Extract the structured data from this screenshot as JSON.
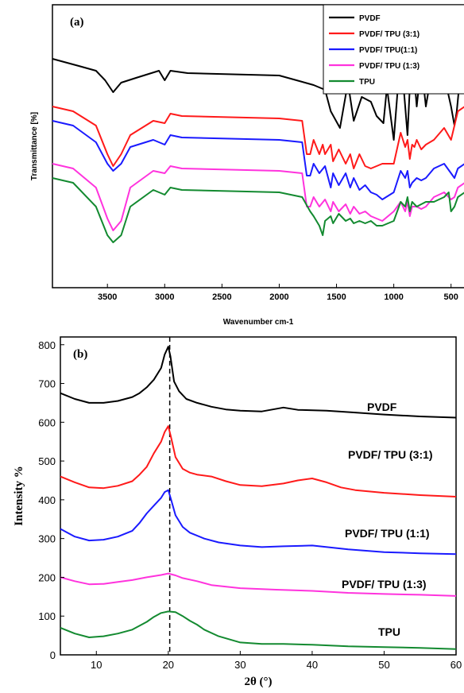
{
  "chart_data": [
    {
      "type": "line",
      "panel_label": "(a)",
      "xlabel": "Wavenumber cm-1",
      "ylabel": "Transmittance [%]",
      "xlim": [
        3980,
        380
      ],
      "x_reversed": true,
      "x_ticks": [
        "3500",
        "3000",
        "2500",
        "2000",
        "1500",
        "1000",
        "500"
      ],
      "x_tick_values": [
        3500,
        3000,
        2500,
        2000,
        1500,
        1000,
        500
      ],
      "legend_position": "top-right",
      "colors": {
        "PVDF": "#000000",
        "PVDF/ TPU (3:1)": "#ff1a1a",
        "PVDF/ TPU(1:1)": "#1a1aff",
        "PVDF/ TPU (1:3)": "#ff33dd",
        "TPU": "#138a30"
      },
      "series": [
        {
          "name": "PVDF",
          "x": [
            3980,
            3750,
            3600,
            3520,
            3450,
            3380,
            3250,
            3050,
            3000,
            2950,
            2800,
            2000,
            1700,
            1600,
            1550,
            1470,
            1400,
            1350,
            1280,
            1200,
            1150,
            1090,
            1060,
            1000,
            940,
            900,
            880,
            860,
            840,
            800,
            760,
            720,
            650,
            560,
            500,
            470,
            450,
            420,
            380
          ],
          "y": [
            92,
            89,
            87,
            83,
            78,
            82,
            84,
            87,
            83,
            87,
            86,
            85,
            81,
            79,
            70,
            63,
            82,
            66,
            76,
            74,
            68,
            65,
            80,
            58,
            95,
            72,
            60,
            80,
            95,
            72,
            90,
            72,
            92,
            85,
            72,
            64,
            70,
            85,
            88
          ]
        },
        {
          "name": "PVDF/ TPU (3:1)",
          "x": [
            3980,
            3800,
            3600,
            3500,
            3450,
            3380,
            3300,
            3100,
            3000,
            2950,
            2850,
            2000,
            1800,
            1760,
            1730,
            1700,
            1650,
            1620,
            1600,
            1550,
            1530,
            1480,
            1420,
            1380,
            1350,
            1300,
            1250,
            1200,
            1150,
            1100,
            1000,
            940,
            900,
            880,
            860,
            840,
            820,
            800,
            760,
            720,
            650,
            560,
            500,
            470,
            440,
            380
          ],
          "y": [
            72,
            70,
            64,
            52,
            47,
            52,
            60,
            66,
            65,
            69,
            68,
            67,
            66,
            52,
            52,
            58,
            52,
            56,
            52,
            56,
            49,
            54,
            48,
            52,
            46,
            52,
            47,
            46,
            47,
            48,
            48,
            61,
            55,
            58,
            50,
            56,
            55,
            58,
            54,
            56,
            58,
            63,
            58,
            64,
            70,
            72
          ]
        },
        {
          "name": "PVDF/ TPU(1:1)",
          "x": [
            3980,
            3800,
            3600,
            3500,
            3450,
            3380,
            3300,
            3100,
            3000,
            2950,
            2850,
            2000,
            1800,
            1760,
            1730,
            1700,
            1650,
            1600,
            1550,
            1530,
            1480,
            1420,
            1380,
            1350,
            1300,
            1250,
            1200,
            1150,
            1100,
            1000,
            940,
            900,
            880,
            860,
            840,
            800,
            760,
            720,
            650,
            560,
            500,
            470,
            440,
            380
          ],
          "y": [
            66,
            64,
            57,
            48,
            45,
            48,
            55,
            58,
            56,
            60,
            59,
            58,
            57,
            43,
            43,
            48,
            44,
            47,
            38,
            44,
            39,
            44,
            38,
            42,
            37,
            39,
            36,
            35,
            33,
            36,
            45,
            42,
            45,
            38,
            40,
            42,
            41,
            42,
            46,
            48,
            44,
            42,
            46,
            48
          ]
        },
        {
          "name": "PVDF/ TPU (1:3)",
          "x": [
            3980,
            3800,
            3600,
            3500,
            3450,
            3380,
            3300,
            3100,
            3000,
            2950,
            2850,
            2000,
            1800,
            1760,
            1730,
            1700,
            1650,
            1600,
            1550,
            1530,
            1480,
            1420,
            1380,
            1350,
            1300,
            1250,
            1200,
            1150,
            1100,
            1000,
            940,
            900,
            880,
            860,
            840,
            800,
            760,
            720,
            650,
            560,
            500,
            470,
            440,
            380
          ],
          "y": [
            48,
            46,
            38,
            25,
            20,
            24,
            38,
            45,
            44,
            47,
            46,
            45,
            44,
            30,
            30,
            34,
            30,
            33,
            28,
            32,
            28,
            31,
            27,
            30,
            27,
            28,
            26,
            25,
            24,
            28,
            32,
            28,
            32,
            26,
            30,
            30,
            29,
            30,
            34,
            36,
            33,
            34,
            38,
            40
          ]
        },
        {
          "name": "TPU",
          "x": [
            3980,
            3800,
            3600,
            3500,
            3450,
            3380,
            3300,
            3100,
            3000,
            2950,
            2850,
            2000,
            1800,
            1730,
            1700,
            1650,
            1620,
            1600,
            1550,
            1530,
            1480,
            1420,
            1380,
            1350,
            1300,
            1250,
            1200,
            1150,
            1100,
            1000,
            940,
            900,
            880,
            860,
            840,
            800,
            760,
            720,
            650,
            560,
            520,
            500,
            470,
            440,
            380
          ],
          "y": [
            42,
            40,
            30,
            18,
            15,
            18,
            30,
            37,
            35,
            38,
            37,
            36,
            34,
            28,
            26,
            22,
            18,
            24,
            26,
            23,
            27,
            24,
            25,
            23,
            24,
            23,
            24,
            22,
            22,
            24,
            32,
            30,
            34,
            28,
            32,
            30,
            31,
            32,
            32,
            34,
            36,
            28,
            30,
            34,
            36
          ]
        }
      ]
    },
    {
      "type": "line",
      "panel_label": "(b)",
      "xlabel": "2θ (°)",
      "ylabel": "Intensity %",
      "xlim": [
        5,
        60
      ],
      "ylim": [
        0,
        820
      ],
      "x_ticks": [
        10,
        20,
        30,
        40,
        50,
        60
      ],
      "y_ticks": [
        0,
        100,
        200,
        300,
        400,
        500,
        600,
        700,
        800
      ],
      "reference_line": {
        "x": 20.2,
        "style": "dashed"
      },
      "colors": {
        "PVDF": "#000000",
        "PVDF/ TPU (3:1)": "#ff1a1a",
        "PVDF/ TPU (1:1)": "#1a1aff",
        "PVDF/ TPU (1:3)": "#ff33dd",
        "TPU": "#138a30"
      },
      "series": [
        {
          "name": "PVDF",
          "x": [
            5,
            7,
            9,
            11,
            13,
            15,
            16,
            17,
            18,
            19,
            19.5,
            20,
            20.3,
            20.8,
            21.5,
            22.5,
            24,
            26,
            28,
            30,
            33,
            36,
            38,
            42,
            46,
            50,
            55,
            60
          ],
          "y": [
            675,
            660,
            650,
            650,
            655,
            665,
            675,
            690,
            710,
            740,
            775,
            795,
            770,
            705,
            680,
            660,
            650,
            640,
            633,
            630,
            628,
            638,
            632,
            630,
            625,
            620,
            615,
            612
          ]
        },
        {
          "name": "PVDF/ TPU (3:1)",
          "x": [
            5,
            7,
            9,
            11,
            13,
            15,
            16,
            17,
            18,
            19,
            19.5,
            20,
            20.4,
            21,
            22,
            23,
            24,
            26,
            28,
            30,
            33,
            36,
            38,
            40,
            42,
            44,
            46,
            50,
            55,
            60
          ],
          "y": [
            460,
            445,
            432,
            430,
            436,
            448,
            465,
            485,
            520,
            550,
            575,
            590,
            560,
            510,
            480,
            470,
            465,
            460,
            448,
            438,
            435,
            442,
            450,
            455,
            445,
            432,
            425,
            418,
            412,
            408
          ]
        },
        {
          "name": "PVDF/ TPU (1:1)",
          "x": [
            5,
            7,
            9,
            11,
            13,
            15,
            16,
            17,
            18,
            19,
            19.5,
            20,
            20.4,
            21,
            22,
            23,
            25,
            27,
            30,
            33,
            36,
            40,
            45,
            50,
            55,
            60
          ],
          "y": [
            325,
            305,
            295,
            297,
            305,
            320,
            340,
            365,
            385,
            405,
            420,
            425,
            400,
            360,
            330,
            315,
            300,
            290,
            282,
            278,
            280,
            282,
            272,
            265,
            262,
            260
          ]
        },
        {
          "name": "PVDF/ TPU (1:3)",
          "x": [
            5,
            7,
            9,
            11,
            13,
            15,
            17,
            19,
            20,
            21,
            22,
            24,
            26,
            30,
            35,
            40,
            45,
            50,
            55,
            60
          ],
          "y": [
            200,
            190,
            182,
            183,
            188,
            193,
            200,
            206,
            210,
            205,
            198,
            190,
            180,
            172,
            168,
            165,
            160,
            157,
            155,
            152
          ]
        },
        {
          "name": "TPU",
          "x": [
            5,
            7,
            9,
            11,
            13,
            15,
            16,
            17,
            18,
            19,
            20,
            21,
            22,
            23,
            24,
            25,
            27,
            30,
            33,
            36,
            40,
            45,
            50,
            55,
            60
          ],
          "y": [
            70,
            55,
            45,
            48,
            55,
            65,
            75,
            85,
            98,
            108,
            112,
            110,
            100,
            88,
            78,
            65,
            48,
            32,
            28,
            28,
            26,
            22,
            20,
            18,
            15
          ]
        }
      ],
      "series_labels": [
        "PVDF",
        "PVDF/ TPU (3:1)",
        "PVDF/ TPU (1:1)",
        "PVDF/ TPU (1:3)",
        "TPU"
      ]
    }
  ]
}
